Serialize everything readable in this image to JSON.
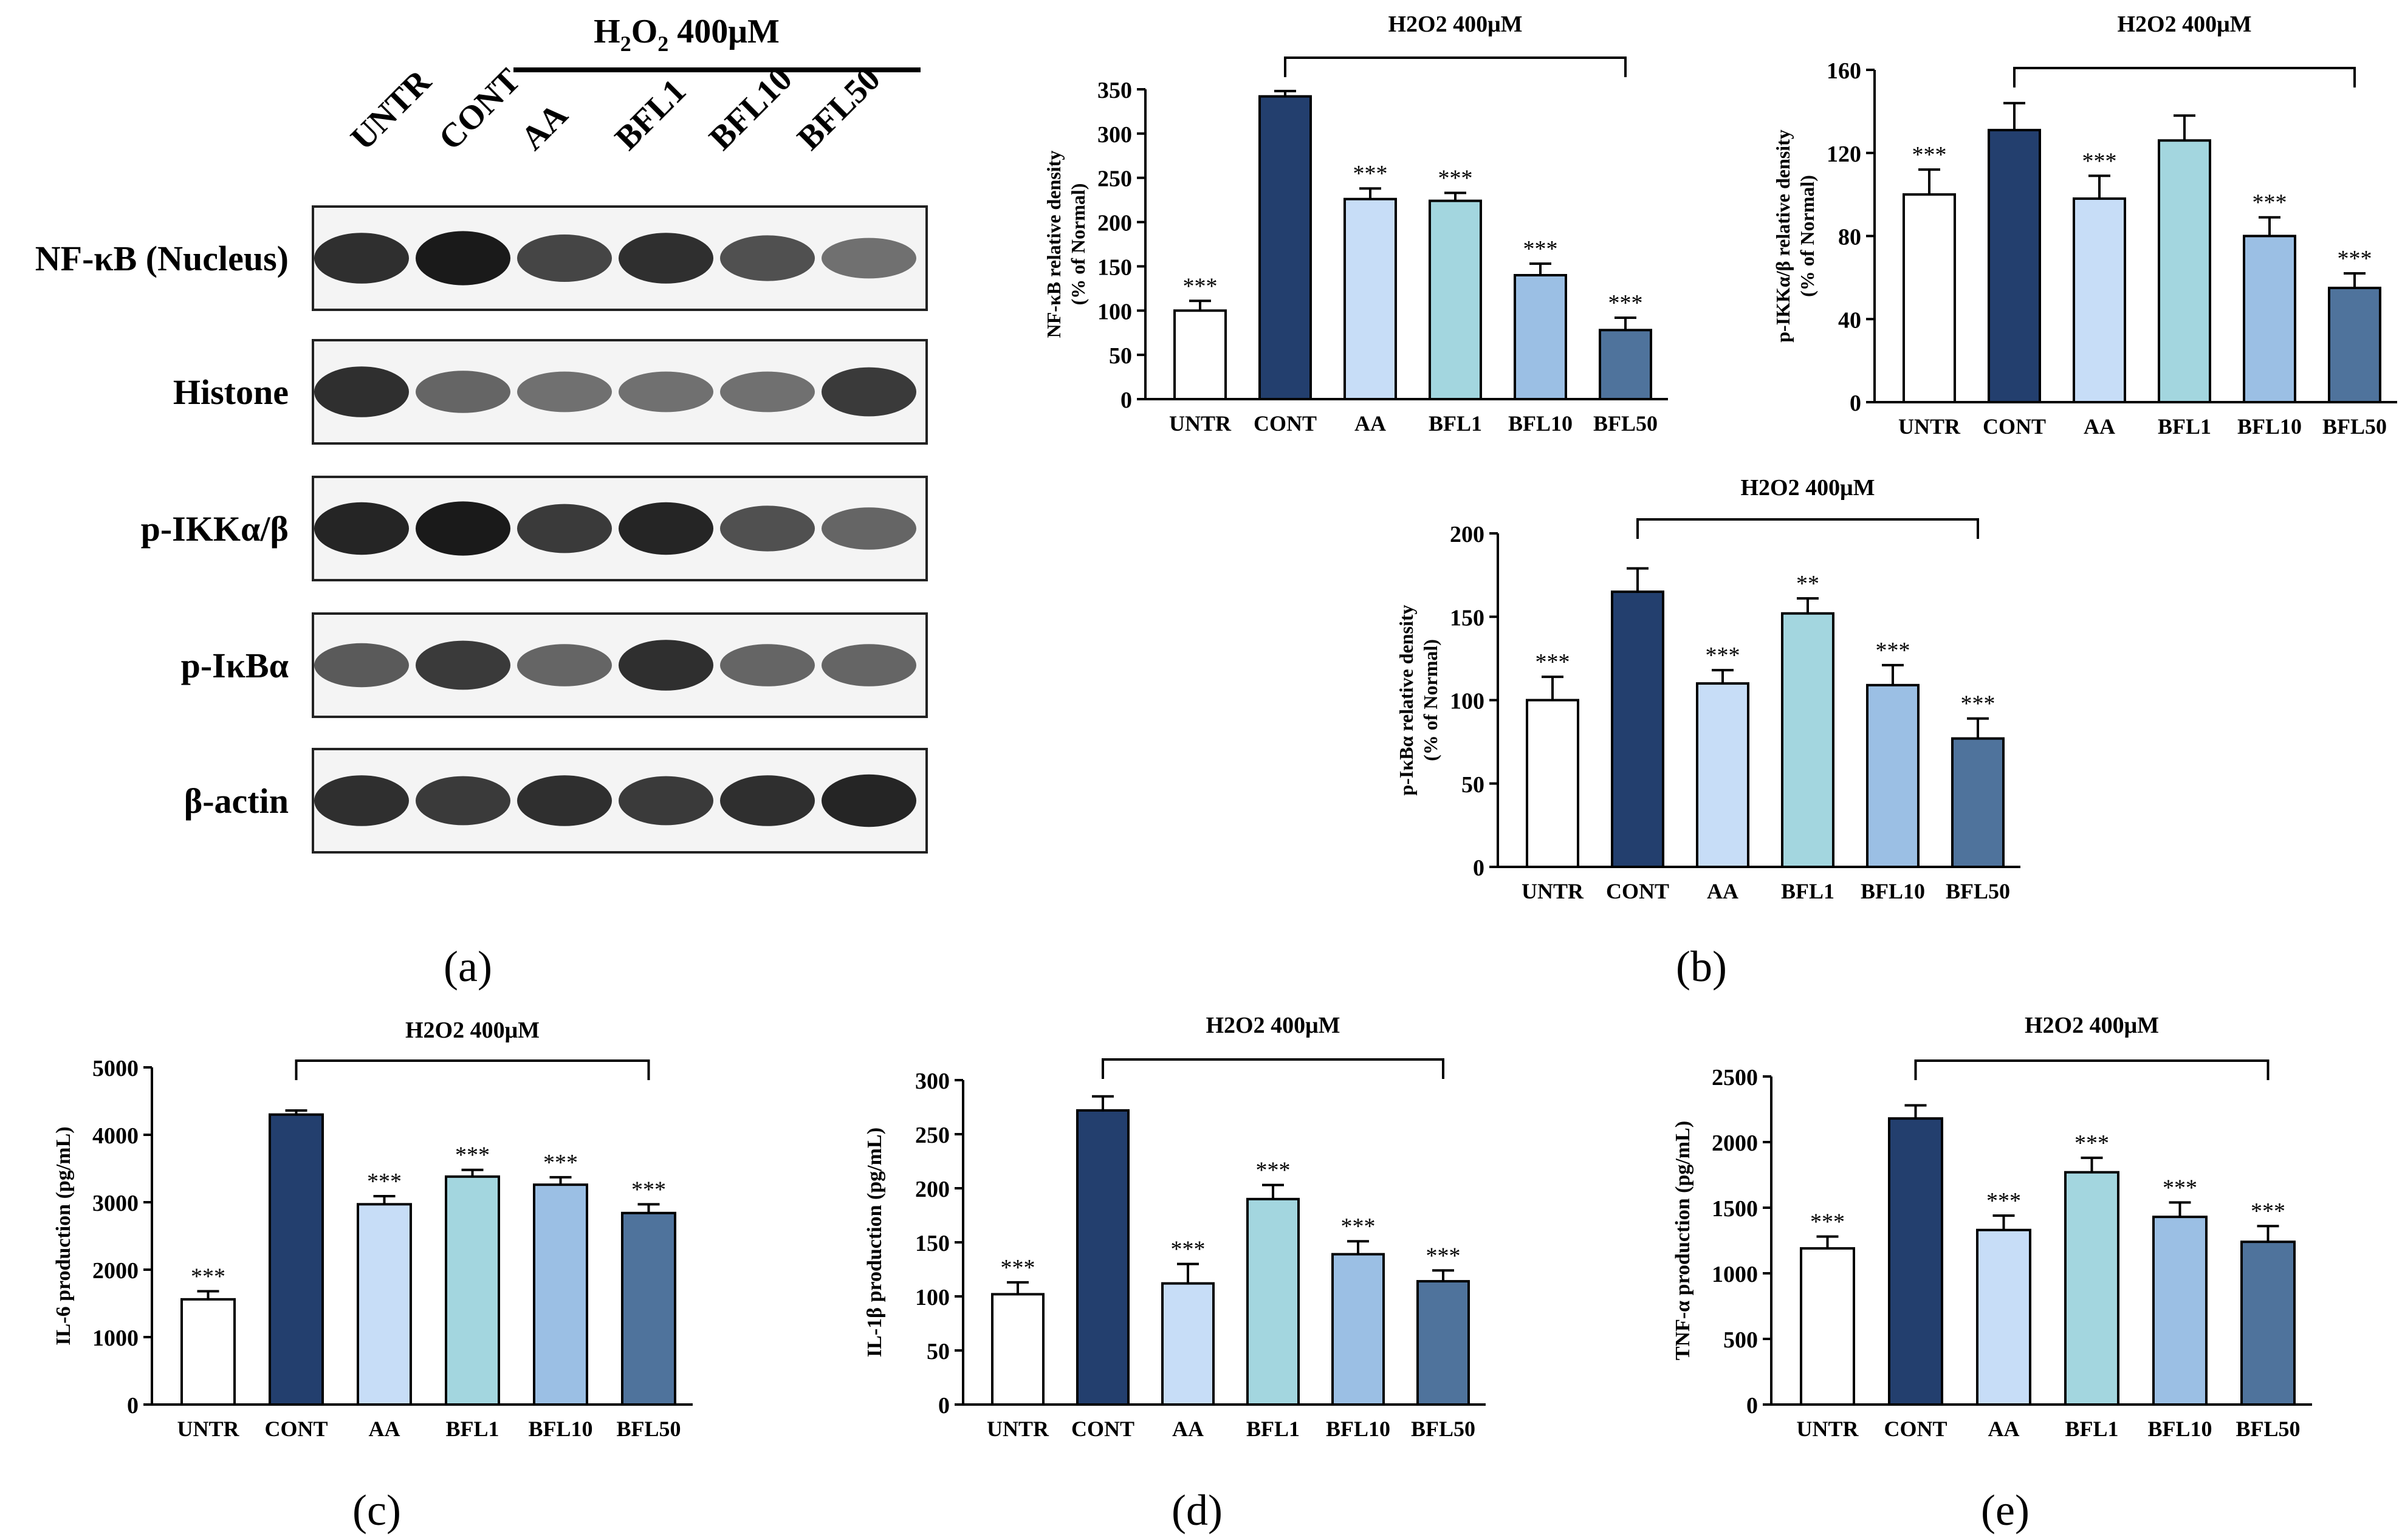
{
  "western_blot": {
    "treatment_prefix": "H",
    "treatment_sub1": "2",
    "treatment_mid": "O",
    "treatment_sub2": "2",
    "treatment_suffix": " 400μM",
    "lanes": [
      "UNTR",
      "CONT",
      "AA",
      "BFL1",
      "BFL10",
      "BFL50"
    ],
    "rows": [
      {
        "label": "NF-κB (Nucleus)",
        "intensity": [
          0.85,
          0.95,
          0.75,
          0.85,
          0.7,
          0.55
        ]
      },
      {
        "label": "Histone",
        "intensity": [
          0.85,
          0.6,
          0.55,
          0.55,
          0.55,
          0.8
        ]
      },
      {
        "label": "p-IKKα/β",
        "intensity": [
          0.9,
          0.95,
          0.8,
          0.9,
          0.7,
          0.6
        ]
      },
      {
        "label": "p-IκBα",
        "intensity": [
          0.65,
          0.8,
          0.6,
          0.85,
          0.6,
          0.6
        ]
      },
      {
        "label": "β-actin",
        "intensity": [
          0.85,
          0.8,
          0.85,
          0.8,
          0.85,
          0.9
        ]
      }
    ]
  },
  "panel_labels": {
    "a": "(a)",
    "b": "(b)",
    "c": "(c)",
    "d": "(d)",
    "e": "(e)"
  },
  "colors": {
    "UNTR": "#ffffff",
    "CONT": "#233f6e",
    "AA": "#c7ddf7",
    "BFL1": "#a3d6df",
    "BFL10": "#9bbfe4",
    "BFL50": "#4f739c"
  },
  "chart_data": [
    {
      "id": "nfkb",
      "type": "bar",
      "title": "H2O2 400μM",
      "categories": [
        "UNTR",
        "CONT",
        "AA",
        "BFL1",
        "BFL10",
        "BFL50"
      ],
      "values": [
        100,
        342,
        226,
        224,
        140,
        78
      ],
      "errors": [
        11,
        6,
        12,
        9,
        13,
        14
      ],
      "significance": [
        "***",
        "",
        "***",
        "***",
        "***",
        "***"
      ],
      "ylabel_line1": "NF-κB  relative density",
      "ylabel_line2": "(% of Normal)",
      "ylim": [
        0,
        350
      ],
      "yticks": [
        0,
        50,
        100,
        150,
        200,
        250,
        300,
        350
      ]
    },
    {
      "id": "pikk",
      "type": "bar",
      "title": "H2O2 400μM",
      "categories": [
        "UNTR",
        "CONT",
        "AA",
        "BFL1",
        "BFL10",
        "BFL50"
      ],
      "values": [
        100,
        131,
        98,
        126,
        80,
        55
      ],
      "errors": [
        12,
        13,
        11,
        12,
        9,
        7
      ],
      "significance": [
        "***",
        "",
        "***",
        "",
        "***",
        "***"
      ],
      "ylabel_line1": "p-IKKα/β relative density",
      "ylabel_line2": "(% of Normal)",
      "ylim": [
        0,
        160
      ],
      "yticks": [
        0,
        40,
        80,
        120,
        160
      ]
    },
    {
      "id": "pikba",
      "type": "bar",
      "title": "H2O2 400μM",
      "categories": [
        "UNTR",
        "CONT",
        "AA",
        "BFL1",
        "BFL10",
        "BFL50"
      ],
      "values": [
        100,
        165,
        110,
        152,
        109,
        77
      ],
      "errors": [
        14,
        14,
        8,
        9,
        12,
        12
      ],
      "significance": [
        "***",
        "",
        "***",
        "**",
        "***",
        "***"
      ],
      "ylabel_line1": "p-IκBα  relative density",
      "ylabel_line2": "(% of Normal)",
      "ylim": [
        0,
        200
      ],
      "yticks": [
        0,
        50,
        100,
        150,
        200
      ]
    },
    {
      "id": "il6",
      "type": "bar",
      "title": "H2O2 400μM",
      "categories": [
        "UNTR",
        "CONT",
        "AA",
        "BFL1",
        "BFL10",
        "BFL50"
      ],
      "values": [
        1560,
        4300,
        2970,
        3380,
        3260,
        2840
      ],
      "errors": [
        120,
        60,
        120,
        100,
        110,
        130
      ],
      "significance": [
        "***",
        "",
        "***",
        "***",
        "***",
        "***"
      ],
      "ylabel_line1": "IL-6 production (pg/mL)",
      "ylabel_line2": "",
      "ylim": [
        0,
        5000
      ],
      "yticks": [
        0,
        1000,
        2000,
        3000,
        4000,
        5000
      ]
    },
    {
      "id": "il1b",
      "type": "bar",
      "title": "H2O2 400μM",
      "categories": [
        "UNTR",
        "CONT",
        "AA",
        "BFL1",
        "BFL10",
        "BFL50"
      ],
      "values": [
        102,
        272,
        112,
        190,
        139,
        114
      ],
      "errors": [
        11,
        13,
        18,
        13,
        12,
        10
      ],
      "significance": [
        "***",
        "",
        "***",
        "***",
        "***",
        "***"
      ],
      "ylabel_line1": "IL-1β production (pg/mL)",
      "ylabel_line2": "",
      "ylim": [
        0,
        300
      ],
      "yticks": [
        0,
        50,
        100,
        150,
        200,
        250,
        300
      ]
    },
    {
      "id": "tnfa",
      "type": "bar",
      "title": "H2O2 400μM",
      "categories": [
        "UNTR",
        "CONT",
        "AA",
        "BFL1",
        "BFL10",
        "BFL50"
      ],
      "values": [
        1190,
        2180,
        1330,
        1770,
        1430,
        1240
      ],
      "errors": [
        90,
        100,
        110,
        110,
        110,
        120
      ],
      "significance": [
        "***",
        "",
        "***",
        "***",
        "***",
        "***"
      ],
      "ylabel_line1": "TNF-α production (pg/mL)",
      "ylabel_line2": "",
      "ylim": [
        0,
        2500
      ],
      "yticks": [
        0,
        500,
        1000,
        1500,
        2000,
        2500
      ]
    }
  ]
}
